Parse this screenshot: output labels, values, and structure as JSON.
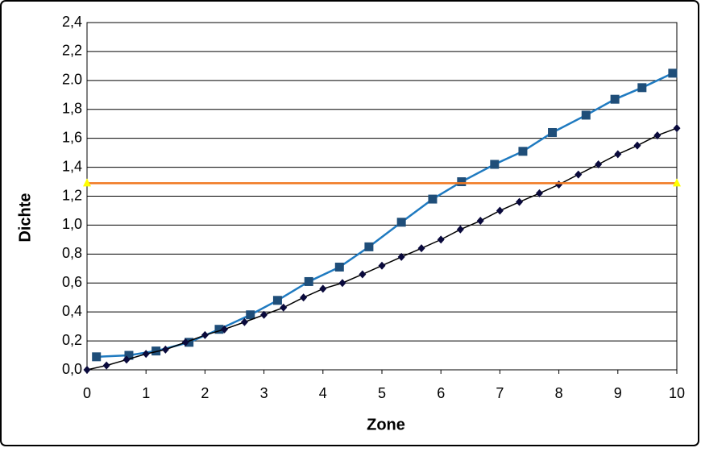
{
  "chart_data": {
    "type": "line",
    "x_label": "Zone",
    "y_label": "Dichte",
    "xlim": [
      0,
      10
    ],
    "xticks": [
      0,
      1,
      2,
      3,
      4,
      5,
      6,
      7,
      8,
      9,
      10
    ],
    "ylim": [
      0,
      2.4
    ],
    "yticks": [
      {
        "value": 0,
        "label": "0,0"
      },
      {
        "value": 0.2,
        "label": "0,2"
      },
      {
        "value": 0.4,
        "label": "0,4"
      },
      {
        "value": 0.6,
        "label": "0,6"
      },
      {
        "value": 0.8,
        "label": "0,8"
      },
      {
        "value": 1.0,
        "label": "1,0"
      },
      {
        "value": 1.2,
        "label": "1,2"
      },
      {
        "value": 1.4,
        "label": "1,4"
      },
      {
        "value": 1.6,
        "label": "1,6"
      },
      {
        "value": 1.8,
        "label": "1,8"
      },
      {
        "value": 2.0,
        "label": "2.0"
      },
      {
        "value": 2.2,
        "label": "2,2"
      },
      {
        "value": 2.4,
        "label": "2,4"
      }
    ],
    "grid": true,
    "series": [
      {
        "color": "#1f7ac0",
        "marker_color": "#1f4e79",
        "marker": "square",
        "x": [
          0.16,
          0.71,
          1.17,
          1.73,
          2.24,
          2.77,
          3.23,
          3.76,
          4.28,
          4.78,
          5.33,
          5.86,
          6.35,
          6.91,
          7.39,
          7.89,
          8.46,
          8.95,
          9.41,
          9.93
        ],
        "values": [
          0.09,
          0.1,
          0.13,
          0.19,
          0.28,
          0.38,
          0.48,
          0.61,
          0.71,
          0.85,
          1.02,
          1.18,
          1.3,
          1.42,
          1.51,
          1.64,
          1.76,
          1.87,
          1.95,
          2.05
        ]
      },
      {
        "color": "#000000",
        "marker_color": "#0a0a3c",
        "marker": "diamond",
        "x": [
          0,
          0.33,
          0.67,
          1,
          1.33,
          1.67,
          2,
          2.33,
          2.67,
          3,
          3.33,
          3.67,
          4,
          4.33,
          4.67,
          5,
          5.33,
          5.67,
          6,
          6.33,
          6.67,
          7,
          7.33,
          7.67,
          8,
          8.33,
          8.67,
          9,
          9.33,
          9.67,
          10
        ],
        "values": [
          0,
          0.03,
          0.07,
          0.11,
          0.14,
          0.19,
          0.24,
          0.28,
          0.33,
          0.38,
          0.43,
          0.5,
          0.56,
          0.6,
          0.66,
          0.72,
          0.78,
          0.84,
          0.9,
          0.97,
          1.03,
          1.1,
          1.16,
          1.22,
          1.28,
          1.35,
          1.42,
          1.49,
          1.55,
          1.62,
          1.67
        ]
      },
      {
        "color": "#f07820",
        "marker_color": "#ffff00",
        "marker": "triangle",
        "x": [
          0,
          10
        ],
        "values": [
          1.29,
          1.29
        ]
      }
    ]
  }
}
